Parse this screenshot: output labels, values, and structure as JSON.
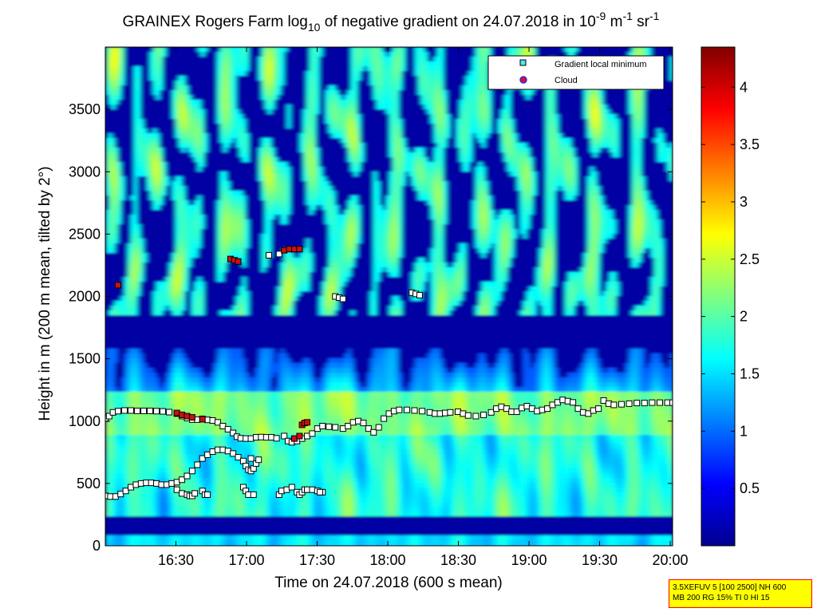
{
  "chart_data": {
    "type": "heatmap",
    "title": {
      "prefix": "GRAINEX Rogers Farm log",
      "sub": "10",
      "middle": " of negative gradient on 24.07.2018 in 10",
      "sup1": "-9",
      "unit1": " m",
      "sup2": "-1",
      "unit2": " sr",
      "sup3": "-1"
    },
    "xlabel": "Time on 24.07.2018 (600 s mean)",
    "ylabel": "Height in m (200 m mean, tilted by 2°)",
    "x_ticks": [
      "16:30",
      "17:00",
      "17:30",
      "18:00",
      "18:30",
      "19:00",
      "19:30",
      "20:00"
    ],
    "y_ticks": [
      "0",
      "500",
      "1000",
      "1500",
      "2000",
      "2500",
      "3000",
      "3500"
    ],
    "xlim": [
      "16:00",
      "20:01"
    ],
    "ylim": [
      0,
      4000
    ],
    "colorbar": {
      "range": [
        0,
        4.35
      ],
      "ticks": [
        "0.5",
        "1",
        "1.5",
        "2",
        "2.5",
        "3",
        "3.5",
        "4"
      ],
      "colormap": "jet"
    },
    "legend": {
      "placement": "top-right",
      "entries": [
        {
          "label": "Gradient local minimum",
          "marker": "square",
          "color": "#4fe6ee"
        },
        {
          "label": "Cloud",
          "marker": "circle",
          "color": "#e01010"
        }
      ]
    },
    "series": [
      {
        "name": "Gradient local minimum",
        "points": [
          [
            0,
            1020
          ],
          [
            3,
            1040
          ],
          [
            6,
            1070
          ],
          [
            10,
            1080
          ],
          [
            15,
            1085
          ],
          [
            20,
            1085
          ],
          [
            25,
            1082
          ],
          [
            30,
            1082
          ],
          [
            35,
            1082
          ],
          [
            40,
            1080
          ],
          [
            45,
            1078
          ],
          [
            50,
            1072
          ],
          [
            56,
            1060
          ],
          [
            60,
            1040
          ],
          [
            64,
            1025
          ],
          [
            68,
            1012
          ],
          [
            72,
            1012
          ],
          [
            76,
            1018
          ],
          [
            80,
            1010
          ],
          [
            84,
            1005
          ],
          [
            88,
            990
          ],
          [
            92,
            960
          ],
          [
            96,
            935
          ],
          [
            100,
            905
          ],
          [
            103,
            875
          ],
          [
            106,
            862
          ],
          [
            110,
            860
          ],
          [
            114,
            860
          ],
          [
            118,
            870
          ],
          [
            122,
            872
          ],
          [
            126,
            870
          ],
          [
            130,
            870
          ],
          [
            134,
            862
          ],
          [
            140,
            880
          ],
          [
            143,
            840
          ],
          [
            146,
            830
          ],
          [
            150,
            840
          ],
          [
            154,
            860
          ],
          [
            158,
            880
          ],
          [
            162,
            900
          ],
          [
            166,
            940
          ],
          [
            170,
            960
          ],
          [
            175,
            955
          ],
          [
            180,
            950
          ],
          [
            186,
            940
          ],
          [
            190,
            960
          ],
          [
            194,
            990
          ],
          [
            198,
            1000
          ],
          [
            202,
            985
          ],
          [
            206,
            940
          ],
          [
            210,
            910
          ],
          [
            214,
            950
          ],
          [
            218,
            1020
          ],
          [
            222,
            1060
          ],
          [
            226,
            1080
          ],
          [
            230,
            1090
          ],
          [
            236,
            1090
          ],
          [
            242,
            1085
          ],
          [
            248,
            1080
          ],
          [
            254,
            1070
          ],
          [
            258,
            1060
          ],
          [
            262,
            1060
          ],
          [
            266,
            1065
          ],
          [
            270,
            1070
          ],
          [
            276,
            1075
          ],
          [
            280,
            1060
          ],
          [
            284,
            1045
          ],
          [
            290,
            1040
          ],
          [
            296,
            1050
          ],
          [
            302,
            1070
          ],
          [
            306,
            1100
          ],
          [
            310,
            1115
          ],
          [
            314,
            1100
          ],
          [
            318,
            1075
          ],
          [
            322,
            1075
          ],
          [
            326,
            1105
          ],
          [
            330,
            1120
          ],
          [
            334,
            1100
          ],
          [
            338,
            1080
          ],
          [
            342,
            1090
          ],
          [
            346,
            1100
          ],
          [
            350,
            1130
          ],
          [
            354,
            1150
          ],
          [
            358,
            1170
          ],
          [
            362,
            1160
          ],
          [
            366,
            1150
          ],
          [
            370,
            1100
          ],
          [
            374,
            1070
          ],
          [
            378,
            1060
          ],
          [
            382,
            1085
          ],
          [
            386,
            1100
          ],
          [
            390,
            1165
          ],
          [
            394,
            1140
          ],
          [
            398,
            1130
          ],
          [
            404,
            1135
          ],
          [
            410,
            1140
          ],
          [
            416,
            1145
          ],
          [
            422,
            1145
          ],
          [
            428,
            1148
          ],
          [
            434,
            1148
          ],
          [
            440,
            1148
          ],
          [
            444,
            1148
          ],
          [
            0,
            400
          ],
          [
            4,
            395
          ],
          [
            8,
            395
          ],
          [
            12,
            415
          ],
          [
            16,
            440
          ],
          [
            20,
            470
          ],
          [
            24,
            490
          ],
          [
            28,
            500
          ],
          [
            32,
            505
          ],
          [
            36,
            505
          ],
          [
            40,
            500
          ],
          [
            44,
            490
          ],
          [
            48,
            490
          ],
          [
            52,
            500
          ],
          [
            56,
            510
          ],
          [
            60,
            530
          ],
          [
            64,
            560
          ],
          [
            68,
            600
          ],
          [
            72,
            650
          ],
          [
            76,
            700
          ],
          [
            80,
            730
          ],
          [
            84,
            755
          ],
          [
            88,
            770
          ],
          [
            92,
            770
          ],
          [
            96,
            760
          ],
          [
            100,
            740
          ],
          [
            104,
            710
          ],
          [
            108,
            680
          ],
          [
            110,
            640
          ],
          [
            112,
            610
          ],
          [
            114,
            600
          ],
          [
            116,
            620
          ],
          [
            118,
            660
          ],
          [
            120,
            690
          ],
          [
            114,
            700
          ],
          [
            56,
            450
          ],
          [
            60,
            420
          ],
          [
            64,
            410
          ],
          [
            66,
            400
          ],
          [
            68,
            400
          ],
          [
            70,
            420
          ],
          [
            76,
            440
          ],
          [
            78,
            410
          ],
          [
            80,
            410
          ],
          [
            108,
            470
          ],
          [
            110,
            440
          ],
          [
            112,
            410
          ],
          [
            116,
            410
          ],
          [
            136,
            410
          ],
          [
            138,
            440
          ],
          [
            142,
            450
          ],
          [
            146,
            470
          ],
          [
            150,
            430
          ],
          [
            152,
            410
          ],
          [
            154,
            430
          ],
          [
            156,
            450
          ],
          [
            158,
            450
          ],
          [
            162,
            450
          ],
          [
            166,
            440
          ],
          [
            170,
            430
          ],
          [
            168,
            430
          ],
          [
            128,
            2330
          ],
          [
            136,
            2340
          ],
          [
            180,
            2000
          ],
          [
            183,
            1990
          ],
          [
            186,
            1980
          ],
          [
            240,
            2030
          ],
          [
            243,
            2020
          ],
          [
            246,
            2010
          ]
        ]
      },
      {
        "name": "Cloud",
        "points": [
          [
            10,
            2090
          ],
          [
            98,
            2300
          ],
          [
            101,
            2290
          ],
          [
            104,
            2280
          ],
          [
            140,
            2370
          ],
          [
            144,
            2380
          ],
          [
            148,
            2380
          ],
          [
            152,
            2380
          ],
          [
            56,
            1065
          ],
          [
            60,
            1050
          ],
          [
            64,
            1040
          ],
          [
            68,
            1030
          ],
          [
            76,
            1015
          ],
          [
            148,
            860
          ],
          [
            152,
            880
          ],
          [
            154,
            970
          ],
          [
            156,
            985
          ],
          [
            158,
            990
          ]
        ]
      }
    ]
  },
  "footnote": {
    "line1": "3.5XEFUV 5 [100 2500] NH 600",
    "line2": "MB 200 RG 15% TI 0 HI 15"
  }
}
